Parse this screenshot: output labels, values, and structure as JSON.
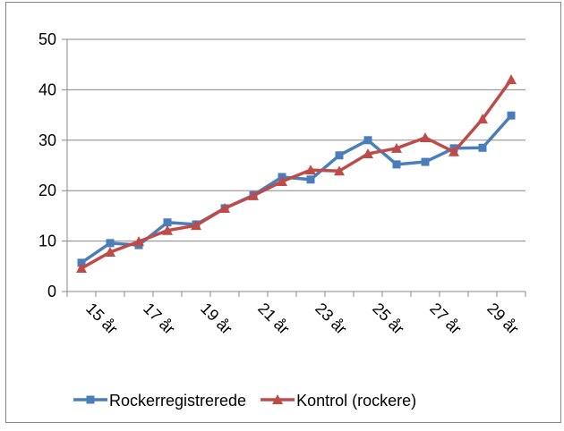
{
  "chart_data": {
    "type": "line",
    "categories": [
      "15 år",
      null,
      "17 år",
      null,
      "19 år",
      null,
      "21 år",
      null,
      "23 år",
      null,
      "25 år",
      null,
      "27 år",
      null,
      "29 år",
      null
    ],
    "series": [
      {
        "name": "Rockerregistrerede",
        "color": "#4a7ebb",
        "marker": "square",
        "values": [
          5.7,
          9.6,
          9.2,
          13.7,
          13.3,
          16.5,
          19.1,
          22.7,
          22.2,
          27,
          30,
          25.2,
          25.7,
          28.4,
          28.5,
          34.9
        ]
      },
      {
        "name": "Kontrol (rockere)",
        "color": "#be4b48",
        "marker": "triangle",
        "values": [
          4.6,
          7.8,
          9.9,
          12.1,
          13.1,
          16.5,
          19,
          21.8,
          24.1,
          23.9,
          27.3,
          28.4,
          30.5,
          27.7,
          34.2,
          42
        ]
      }
    ],
    "ylim": [
      0,
      50
    ],
    "yticks": [
      0,
      10,
      20,
      30,
      40,
      50
    ],
    "grid": true,
    "legend": "bottom"
  }
}
